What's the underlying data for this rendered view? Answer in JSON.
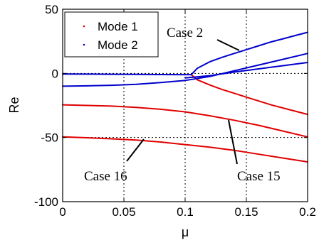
{
  "chart_data": {
    "type": "line",
    "xlabel": "μ",
    "ylabel": "Re",
    "xlim": [
      0,
      0.2
    ],
    "ylim": [
      -100,
      50
    ],
    "xticks": [
      0,
      0.05,
      0.1,
      0.15,
      0.2
    ],
    "xtick_labels": [
      "0",
      "0.05",
      "0.1",
      "0.15",
      "0.2"
    ],
    "yticks": [
      -100,
      -50,
      0,
      50
    ],
    "ytick_labels": [
      "-100",
      "-50",
      "0",
      "50"
    ],
    "grid": true,
    "legend": {
      "placement": "top-left",
      "entries": [
        {
          "label": "Mode 1",
          "color": "#e00000"
        },
        {
          "label": "Mode 2",
          "color": "#0000cc"
        }
      ]
    },
    "annotations": [
      {
        "text": "Case 2",
        "at": [
          0.13,
          28
        ]
      },
      {
        "text": "Case 16",
        "at": [
          0.06,
          -44
        ]
      },
      {
        "text": "Case 15",
        "at": [
          0.13,
          -52
        ]
      }
    ],
    "series": [
      {
        "name": "Mode 1",
        "color": "#e00000",
        "x": [
          0,
          0.02,
          0.04,
          0.06,
          0.08,
          0.1,
          0.12,
          0.14,
          0.16,
          0.18,
          0.2
        ],
        "y": [
          -49.5,
          -50.2,
          -51,
          -52,
          -53.5,
          -55.5,
          -57.5,
          -60,
          -63,
          -66,
          -69
        ]
      },
      {
        "name": "Mode 1",
        "color": "#e00000",
        "x": [
          0,
          0.02,
          0.04,
          0.06,
          0.08,
          0.1,
          0.12,
          0.14,
          0.16,
          0.18,
          0.2
        ],
        "y": [
          -24.5,
          -25,
          -25.5,
          -26.5,
          -28,
          -30,
          -33,
          -36.5,
          -40.5,
          -45,
          -49.5
        ]
      },
      {
        "name": "Mode 1",
        "color": "#e00000",
        "x": [
          0.105,
          0.11,
          0.12,
          0.13,
          0.14,
          0.15,
          0.16,
          0.17,
          0.18,
          0.19,
          0.2
        ],
        "y": [
          -1,
          -5,
          -9,
          -12.5,
          -15.5,
          -18.5,
          -21.5,
          -24.5,
          -27,
          -29.5,
          -32
        ]
      },
      {
        "name": "Mode 2",
        "color": "#0000cc",
        "x": [
          0,
          0.02,
          0.04,
          0.06,
          0.08,
          0.1,
          0.105
        ],
        "y": [
          -0.5,
          -0.6,
          -0.7,
          -0.8,
          -0.9,
          -1,
          -1
        ]
      },
      {
        "name": "Mode 2",
        "color": "#0000cc",
        "x": [
          0.105,
          0.11,
          0.12,
          0.13,
          0.14,
          0.15,
          0.16,
          0.17,
          0.18,
          0.19,
          0.2
        ],
        "y": [
          -1,
          4,
          9,
          12.5,
          15.5,
          18.5,
          21.5,
          24.5,
          27,
          29.5,
          32
        ]
      },
      {
        "name": "Mode 2",
        "color": "#0000cc",
        "x": [
          0,
          0.02,
          0.04,
          0.06,
          0.08,
          0.1,
          0.12,
          0.14,
          0.16,
          0.18,
          0.2
        ],
        "y": [
          -10,
          -9.7,
          -9.3,
          -8.5,
          -7.2,
          -5.5,
          -2.5,
          2,
          6.5,
          11,
          15.5
        ]
      },
      {
        "name": "Mode 2",
        "color": "#0000cc",
        "x": [
          0.1,
          0.12,
          0.14,
          0.16,
          0.18,
          0.2
        ],
        "y": [
          -3.5,
          -1.8,
          1,
          3.5,
          6,
          8.5
        ]
      }
    ]
  }
}
